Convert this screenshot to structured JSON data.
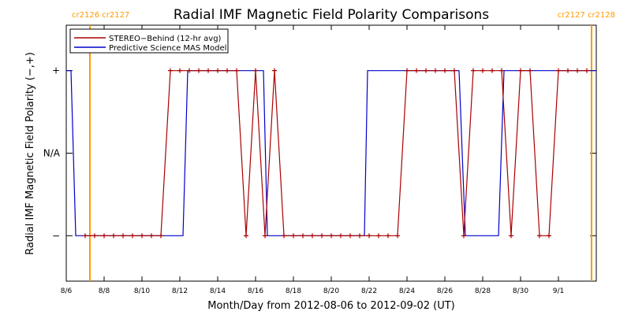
{
  "chart_data": {
    "type": "line",
    "title": "Radial IMF Magnetic Field Polarity Comparisons",
    "xlabel": "Month/Day from 2012-08-06 to 2012-09-02 (UT)",
    "ylabel": "Radial IMF Magnetic Field Polarity (−,+)",
    "xlim": [
      "2012-08-06",
      "2012-09-03"
    ],
    "y_categories": [
      "−",
      "N/A",
      "+"
    ],
    "y_values": {
      "−": -1,
      "N/A": 0,
      "+": 1
    },
    "ylim": [
      -1.55,
      1.55
    ],
    "x_ticks": [
      {
        "date": "2012-08-06",
        "label": "8/6"
      },
      {
        "date": "2012-08-08",
        "label": "8/8"
      },
      {
        "date": "2012-08-10",
        "label": "8/10"
      },
      {
        "date": "2012-08-12",
        "label": "8/12"
      },
      {
        "date": "2012-08-14",
        "label": "8/14"
      },
      {
        "date": "2012-08-16",
        "label": "8/16"
      },
      {
        "date": "2012-08-18",
        "label": "8/18"
      },
      {
        "date": "2012-08-20",
        "label": "8/20"
      },
      {
        "date": "2012-08-22",
        "label": "8/22"
      },
      {
        "date": "2012-08-24",
        "label": "8/24"
      },
      {
        "date": "2012-08-26",
        "label": "8/26"
      },
      {
        "date": "2012-08-28",
        "label": "8/28"
      },
      {
        "date": "2012-08-30",
        "label": "8/30"
      },
      {
        "date": "2012-09-01",
        "label": "9/1"
      }
    ],
    "carrington_markers": [
      {
        "date": "2012-08-07 06:00",
        "label": "cr2126 cr2127"
      },
      {
        "date": "2012-09-02 18:00",
        "label": "cr2127 cr2128"
      }
    ],
    "marker_color": "#ff9900",
    "legend_position": "top-left",
    "series": [
      {
        "name": "STEREO−Behind (12-hr avg)",
        "color": "#aa0000",
        "marker": "+",
        "points": [
          [
            "2012-08-07 00:00",
            -1
          ],
          [
            "2012-08-07 12:00",
            -1
          ],
          [
            "2012-08-08 00:00",
            -1
          ],
          [
            "2012-08-08 12:00",
            -1
          ],
          [
            "2012-08-09 00:00",
            -1
          ],
          [
            "2012-08-09 12:00",
            -1
          ],
          [
            "2012-08-10 00:00",
            -1
          ],
          [
            "2012-08-10 12:00",
            -1
          ],
          [
            "2012-08-11 00:00",
            -1
          ],
          [
            "2012-08-11 12:00",
            1
          ],
          [
            "2012-08-12 00:00",
            1
          ],
          [
            "2012-08-12 12:00",
            1
          ],
          [
            "2012-08-13 00:00",
            1
          ],
          [
            "2012-08-13 12:00",
            1
          ],
          [
            "2012-08-14 00:00",
            1
          ],
          [
            "2012-08-14 12:00",
            1
          ],
          [
            "2012-08-15 00:00",
            1
          ],
          [
            "2012-08-15 12:00",
            -1
          ],
          [
            "2012-08-16 00:00",
            1
          ],
          [
            "2012-08-16 12:00",
            -1
          ],
          [
            "2012-08-17 00:00",
            1
          ],
          [
            "2012-08-17 12:00",
            -1
          ],
          [
            "2012-08-18 00:00",
            -1
          ],
          [
            "2012-08-18 12:00",
            -1
          ],
          [
            "2012-08-19 00:00",
            -1
          ],
          [
            "2012-08-19 12:00",
            -1
          ],
          [
            "2012-08-20 00:00",
            -1
          ],
          [
            "2012-08-20 12:00",
            -1
          ],
          [
            "2012-08-21 00:00",
            -1
          ],
          [
            "2012-08-21 12:00",
            -1
          ],
          [
            "2012-08-22 00:00",
            -1
          ],
          [
            "2012-08-22 12:00",
            -1
          ],
          [
            "2012-08-23 00:00",
            -1
          ],
          [
            "2012-08-23 12:00",
            -1
          ],
          [
            "2012-08-24 00:00",
            1
          ],
          [
            "2012-08-24 12:00",
            1
          ],
          [
            "2012-08-25 00:00",
            1
          ],
          [
            "2012-08-25 12:00",
            1
          ],
          [
            "2012-08-26 00:00",
            1
          ],
          [
            "2012-08-26 12:00",
            1
          ],
          [
            "2012-08-27 00:00",
            -1
          ],
          [
            "2012-08-27 12:00",
            1
          ],
          [
            "2012-08-28 00:00",
            1
          ],
          [
            "2012-08-28 12:00",
            1
          ],
          [
            "2012-08-29 00:00",
            1
          ],
          [
            "2012-08-29 12:00",
            -1
          ],
          [
            "2012-08-30 00:00",
            1
          ],
          [
            "2012-08-30 12:00",
            1
          ],
          [
            "2012-08-31 00:00",
            -1
          ],
          [
            "2012-08-31 12:00",
            -1
          ],
          [
            "2012-09-01 00:00",
            1
          ],
          [
            "2012-09-01 12:00",
            1
          ],
          [
            "2012-09-02 00:00",
            1
          ],
          [
            "2012-09-02 12:00",
            1
          ]
        ]
      },
      {
        "name": "Predictive Science MAS Model",
        "color": "#0000cc",
        "points": [
          [
            "2012-08-06 00:00",
            1
          ],
          [
            "2012-08-06 06:00",
            1
          ],
          [
            "2012-08-06 12:00",
            -1
          ],
          [
            "2012-08-12 04:00",
            -1
          ],
          [
            "2012-08-12 10:00",
            1
          ],
          [
            "2012-08-16 10:00",
            1
          ],
          [
            "2012-08-16 15:00",
            -1
          ],
          [
            "2012-08-21 18:00",
            -1
          ],
          [
            "2012-08-21 22:00",
            1
          ],
          [
            "2012-08-26 18:00",
            1
          ],
          [
            "2012-08-27 02:00",
            -1
          ],
          [
            "2012-08-28 20:00",
            -1
          ],
          [
            "2012-08-29 03:00",
            1
          ],
          [
            "2012-09-03 00:00",
            1
          ]
        ]
      }
    ]
  }
}
